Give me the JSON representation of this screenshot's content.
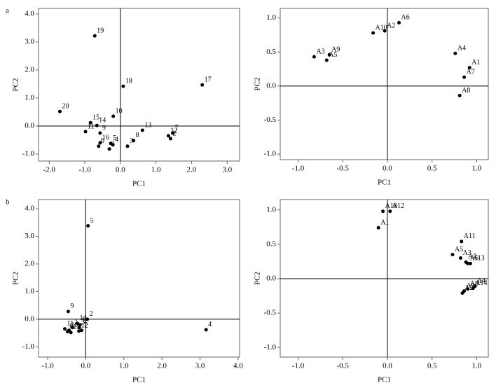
{
  "chart_data": [
    {
      "type": "scatter",
      "panel": "a",
      "xlabel": "PC1",
      "ylabel": "PC2",
      "zero_lines": true,
      "color": "#000000",
      "xlim": [
        -2.3,
        3.35
      ],
      "ylim": [
        -1.25,
        4.2
      ],
      "xticks": [
        {
          "value": -2,
          "label": "-2.0"
        },
        {
          "value": -1,
          "label": "-1.0"
        },
        {
          "value": 0,
          "label": "0.0"
        },
        {
          "value": 1,
          "label": "1.0"
        },
        {
          "value": 2,
          "label": "2.0"
        },
        {
          "value": 3,
          "label": "3.0"
        }
      ],
      "yticks": [
        {
          "value": -1,
          "label": "-1.0"
        },
        {
          "value": 0,
          "label": "0.0"
        },
        {
          "value": 1,
          "label": "1.0"
        },
        {
          "value": 2,
          "label": "2.0"
        },
        {
          "value": 3,
          "label": "3.0"
        },
        {
          "value": 4,
          "label": "4.0"
        }
      ],
      "point_labels": [
        "1",
        "2",
        "3",
        "4",
        "5",
        "6",
        "7",
        "8",
        "9",
        "10",
        "11",
        "12",
        "13",
        "14",
        "15",
        "16",
        "17",
        "18",
        "19",
        "20"
      ],
      "x": [
        -0.31,
        1.41,
        0.2,
        -0.21,
        -0.27,
        -0.61,
        1.47,
        0.37,
        -0.57,
        -0.2,
        -0.98,
        1.35,
        0.62,
        -0.66,
        -0.84,
        -0.57,
        2.3,
        0.08,
        -0.72,
        -1.7
      ],
      "y": [
        -0.82,
        -0.45,
        -0.72,
        -0.67,
        -0.62,
        -0.72,
        -0.25,
        -0.52,
        -0.25,
        0.35,
        -0.2,
        -0.35,
        -0.15,
        0.02,
        0.12,
        -0.6,
        1.47,
        1.42,
        3.22,
        0.52
      ]
    },
    {
      "type": "scatter",
      "xlabel": "PC1",
      "ylabel": "PC2",
      "zero_lines": true,
      "color": "#000000",
      "xlim": [
        -1.2,
        1.13
      ],
      "ylim": [
        -1.08,
        1.14
      ],
      "xticks": [
        {
          "value": -1,
          "label": "-1.0"
        },
        -0.5,
        {
          "value": 0,
          "label": "0.0"
        },
        0.5,
        {
          "value": 1,
          "label": "1.0"
        }
      ],
      "yticks": [
        {
          "value": -1,
          "label": "-1.0"
        },
        -0.5,
        {
          "value": 0,
          "label": "0.0"
        },
        0.5,
        {
          "value": 1,
          "label": "1.0"
        }
      ],
      "point_labels": [
        "A1",
        "A2",
        "A3",
        "A4",
        "A5",
        "A6",
        "A7",
        "A8",
        "A9",
        "A10"
      ],
      "x": [
        0.92,
        -0.03,
        -0.82,
        0.76,
        -0.68,
        0.13,
        0.86,
        0.81,
        -0.65,
        -0.16
      ],
      "y": [
        0.27,
        0.81,
        0.43,
        0.48,
        0.38,
        0.93,
        0.13,
        -0.14,
        0.46,
        0.78
      ]
    },
    {
      "type": "scatter",
      "panel": "b",
      "xlabel": "PC1",
      "ylabel": "PC2",
      "zero_lines": true,
      "color": "#000000",
      "xlim": [
        -1.24,
        4.04
      ],
      "ylim": [
        -1.37,
        4.33
      ],
      "xticks": [
        {
          "value": -1,
          "label": "-1.0"
        },
        {
          "value": 0,
          "label": "0.0"
        },
        {
          "value": 1,
          "label": "1.0"
        },
        {
          "value": 2,
          "label": "2.0"
        },
        {
          "value": 3,
          "label": "3.0"
        },
        {
          "value": 4,
          "label": "4.0"
        }
      ],
      "yticks": [
        {
          "value": -1,
          "label": "-1.0"
        },
        {
          "value": 0,
          "label": "0.0"
        },
        {
          "value": 1,
          "label": "1.0"
        },
        {
          "value": 2,
          "label": "2.0"
        },
        {
          "value": 3,
          "label": "3.0"
        },
        {
          "value": 4,
          "label": "4.0"
        }
      ],
      "point_labels": [
        "1",
        "2",
        "3",
        "4",
        "5",
        "6",
        "7",
        "8",
        "9",
        "10",
        "11",
        "12",
        "13",
        "14"
      ],
      "x": [
        -0.35,
        0.04,
        -0.17,
        3.16,
        0.06,
        -0.15,
        -0.11,
        -0.48,
        -0.46,
        -0.44,
        -0.55,
        -0.18,
        -0.39,
        -0.22
      ],
      "y": [
        -0.3,
        0.0,
        -0.3,
        -0.38,
        3.38,
        -0.2,
        -0.4,
        -0.45,
        0.28,
        -0.4,
        -0.35,
        -0.43,
        -0.48,
        -0.15
      ]
    },
    {
      "type": "scatter",
      "xlabel": "PC1",
      "ylabel": "PC2",
      "zero_lines": true,
      "color": "#000000",
      "xlim": [
        -1.2,
        1.13
      ],
      "ylim": [
        -1.14,
        1.15
      ],
      "xticks": [
        {
          "value": -1,
          "label": "-1.0"
        },
        -0.5,
        {
          "value": 0,
          "label": "0.0"
        },
        0.5,
        {
          "value": 1,
          "label": "1.0"
        }
      ],
      "yticks": [
        {
          "value": -1,
          "label": "-1.0"
        },
        -0.5,
        {
          "value": 0,
          "label": "0.0"
        },
        0.5,
        {
          "value": 1,
          "label": "1.0"
        }
      ],
      "point_labels": [
        "A1",
        "A2",
        "A3",
        "A4",
        "A5",
        "A6",
        "A7",
        "A8",
        "A9",
        "A10",
        "A11",
        "A12",
        "A13",
        "A14"
      ],
      "x": [
        -0.1,
        0.84,
        0.82,
        0.98,
        0.73,
        0.9,
        0.88,
        0.9,
        0.86,
        -0.05,
        0.83,
        0.03,
        0.93,
        0.96
      ],
      "y": [
        0.74,
        -0.21,
        0.3,
        -0.11,
        0.35,
        0.22,
        0.24,
        -0.15,
        -0.18,
        0.98,
        0.54,
        0.98,
        0.22,
        -0.14
      ]
    }
  ]
}
